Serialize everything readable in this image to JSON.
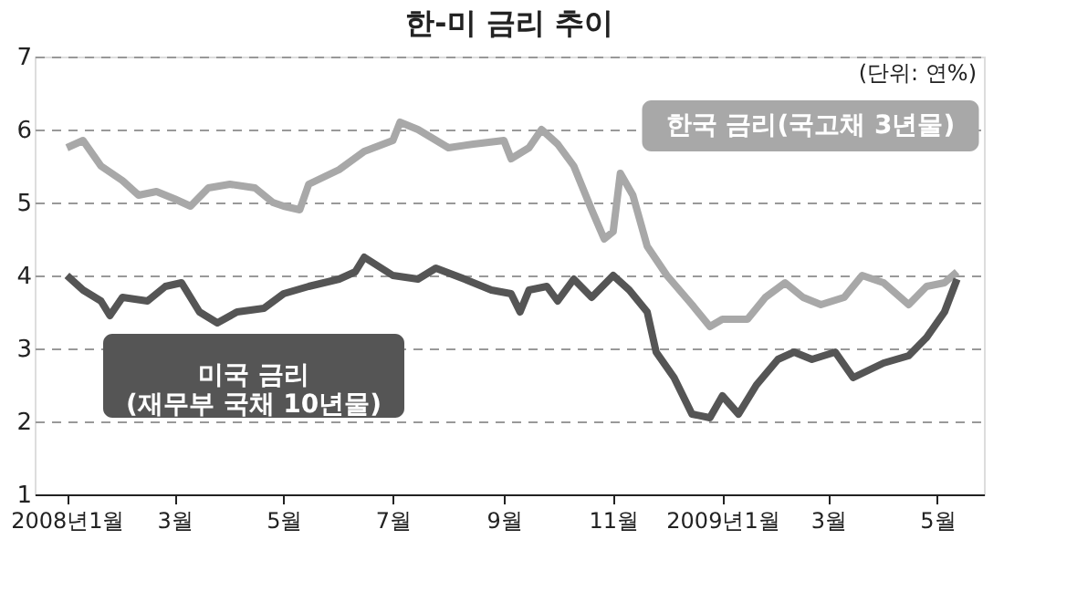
{
  "chart_data": {
    "type": "line",
    "title": "한-미 금리 추이",
    "annotations": [
      "(단위: 연%)"
    ],
    "xlim": [
      "2007-12-14",
      "2009-05-27"
    ],
    "xticks": [
      {
        "value": "2008-01-01",
        "label": "2008년1월"
      },
      {
        "value": "2008-03-01",
        "label": "3월"
      },
      {
        "value": "2008-05-01",
        "label": "5월"
      },
      {
        "value": "2008-07-01",
        "label": "7월"
      },
      {
        "value": "2008-09-01",
        "label": "9월"
      },
      {
        "value": "2008-11-01",
        "label": "11월"
      },
      {
        "value": "2009-01-01",
        "label": "2009년1월"
      },
      {
        "value": "2009-03-01",
        "label": "3월"
      },
      {
        "value": "2009-05-01",
        "label": "5월"
      }
    ],
    "ylim": [
      1,
      7
    ],
    "yticks": [
      1,
      2,
      3,
      4,
      5,
      6,
      7
    ],
    "grid": "y",
    "legend": false,
    "line_style": "solid",
    "marker": "none",
    "series": [
      {
        "name": "한국 금리(국고채 3년물)",
        "color": "#a8a8a8",
        "x": [
          "2008-01-01",
          "2008-01-10",
          "2008-01-20",
          "2008-02-01",
          "2008-02-10",
          "2008-02-20",
          "2008-03-01",
          "2008-03-10",
          "2008-03-20",
          "2008-04-01",
          "2008-04-15",
          "2008-04-25",
          "2008-05-01",
          "2008-05-10",
          "2008-05-15",
          "2008-06-01",
          "2008-06-15",
          "2008-07-01",
          "2008-07-05",
          "2008-07-15",
          "2008-08-01",
          "2008-08-15",
          "2008-09-01",
          "2008-09-05",
          "2008-09-15",
          "2008-09-22",
          "2008-10-01",
          "2008-10-10",
          "2008-10-20",
          "2008-10-27",
          "2008-11-01",
          "2008-11-05",
          "2008-11-12",
          "2008-11-20",
          "2008-12-01",
          "2008-12-15",
          "2008-12-25",
          "2009-01-01",
          "2009-01-15",
          "2009-01-25",
          "2009-02-05",
          "2009-02-15",
          "2009-02-25",
          "2009-03-10",
          "2009-03-20",
          "2009-04-01",
          "2009-04-15",
          "2009-04-25",
          "2009-05-05",
          "2009-05-12"
        ],
        "values": [
          5.75,
          5.85,
          5.5,
          5.3,
          5.1,
          5.15,
          5.05,
          4.95,
          5.2,
          5.25,
          5.2,
          5.0,
          4.95,
          4.9,
          5.25,
          5.45,
          5.7,
          5.85,
          6.1,
          6.0,
          5.75,
          5.8,
          5.85,
          5.6,
          5.75,
          6.0,
          5.8,
          5.5,
          4.9,
          4.5,
          4.6,
          5.4,
          5.1,
          4.4,
          4.0,
          3.6,
          3.3,
          3.4,
          3.4,
          3.7,
          3.9,
          3.7,
          3.6,
          3.7,
          4.0,
          3.9,
          3.6,
          3.85,
          3.9,
          4.05
        ]
      },
      {
        "name": "미국 금리\n(재무부 국채 10년물)",
        "color": "#555555",
        "x": [
          "2008-01-01",
          "2008-01-10",
          "2008-01-20",
          "2008-01-25",
          "2008-02-01",
          "2008-02-15",
          "2008-02-25",
          "2008-03-05",
          "2008-03-15",
          "2008-03-25",
          "2008-04-05",
          "2008-04-20",
          "2008-05-01",
          "2008-05-15",
          "2008-06-01",
          "2008-06-10",
          "2008-06-15",
          "2008-07-01",
          "2008-07-15",
          "2008-07-25",
          "2008-08-10",
          "2008-08-25",
          "2008-09-05",
          "2008-09-10",
          "2008-09-15",
          "2008-09-25",
          "2008-10-01",
          "2008-10-10",
          "2008-10-20",
          "2008-11-01",
          "2008-11-10",
          "2008-11-20",
          "2008-11-25",
          "2008-12-05",
          "2008-12-15",
          "2008-12-25",
          "2009-01-01",
          "2009-01-10",
          "2009-01-20",
          "2009-02-01",
          "2009-02-10",
          "2009-02-20",
          "2009-03-05",
          "2009-03-15",
          "2009-04-01",
          "2009-04-15",
          "2009-04-25",
          "2009-05-05",
          "2009-05-12"
        ],
        "values": [
          4.0,
          3.8,
          3.65,
          3.45,
          3.7,
          3.65,
          3.85,
          3.9,
          3.5,
          3.35,
          3.5,
          3.55,
          3.75,
          3.85,
          3.95,
          4.05,
          4.25,
          4.0,
          3.95,
          4.1,
          3.95,
          3.8,
          3.75,
          3.5,
          3.8,
          3.85,
          3.65,
          3.95,
          3.7,
          4.0,
          3.8,
          3.5,
          2.95,
          2.6,
          2.1,
          2.05,
          2.35,
          2.1,
          2.5,
          2.85,
          2.95,
          2.85,
          2.95,
          2.6,
          2.8,
          2.9,
          3.15,
          3.5,
          3.95
        ]
      }
    ]
  }
}
